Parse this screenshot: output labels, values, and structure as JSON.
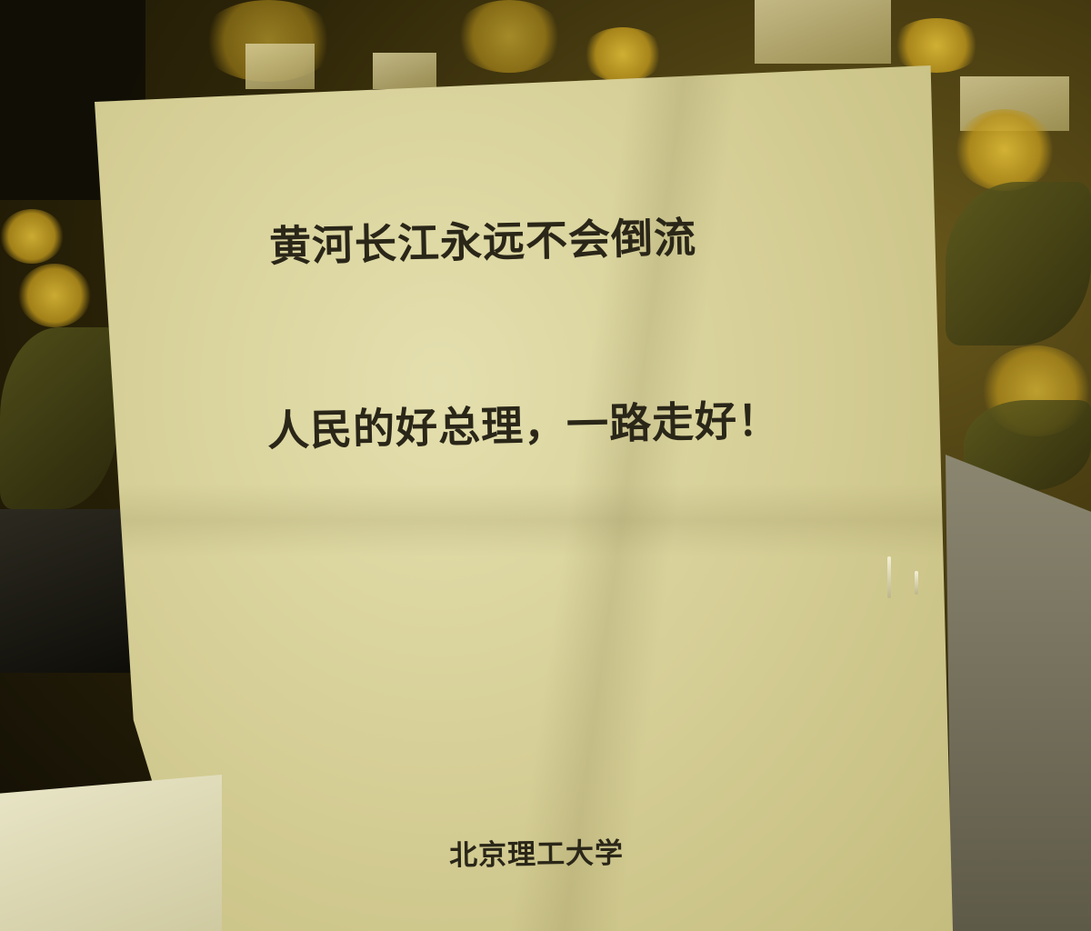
{
  "notice": {
    "line1": "黄河长江永远不会倒流",
    "line2": "人民的好总理，一路走好！",
    "signature": "北京理工大学"
  },
  "colors": {
    "paper": "#d6cf97",
    "ink": "#2a2618",
    "flowers": "#e8c43a",
    "background": "#2d2508"
  }
}
